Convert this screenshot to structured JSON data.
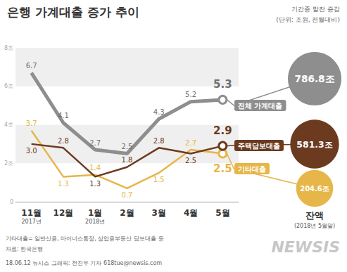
{
  "chart_data": {
    "type": "line",
    "title": "은행 가계대출 증가 추이",
    "subtitle": [
      "기간중 말잔 증감",
      "(단위: 조원, 전월대비)"
    ],
    "categories": [
      "11월\n2017년",
      "12월",
      "1월\n2018년",
      "2월",
      "3월",
      "4월",
      "5월"
    ],
    "series": [
      {
        "name": "전체 가계대출",
        "color": "#8e8e8e",
        "values": [
          6.7,
          4.1,
          2.7,
          2.5,
          4.3,
          5.2,
          5.3
        ],
        "value_labels": [
          "6.7",
          "4.1",
          "2.7",
          "2.5",
          "4.3",
          "5.2",
          "5.3"
        ],
        "balance": 786.8,
        "balance_label": "786.8조"
      },
      {
        "name": "주택담보대출",
        "color": "#6b3a1f",
        "values": [
          3.0,
          2.8,
          1.3,
          1.8,
          2.8,
          2.5,
          2.9
        ],
        "value_labels": [
          "3.0",
          "2.8",
          "1.3",
          "1.8",
          "2.8",
          "2.5",
          "2.9"
        ],
        "balance": 581.3,
        "balance_label": "581.3조"
      },
      {
        "name": "기타대출",
        "color": "#e6b648",
        "values": [
          3.7,
          1.3,
          1.4,
          0.7,
          1.5,
          2.7,
          2.5
        ],
        "value_labels": [
          "3.7",
          "1.3",
          "1.4",
          "0.7",
          "1.5",
          "2.7",
          "2.5"
        ],
        "balance": 204.6,
        "balance_label": "204.6조"
      }
    ],
    "ylim": [
      0,
      8
    ],
    "yticks": [
      0,
      {
        "value": 2,
        "label": "2조"
      },
      {
        "value": 4,
        "label": "4조"
      },
      {
        "value": 6,
        "label": "6조"
      },
      {
        "value": 8,
        "label": "8조"
      }
    ],
    "grid": true,
    "data_labels": true,
    "balance_title": "잔액",
    "balance_note": "(2018년 5월말)",
    "notes": [
      "기타대출= 일반신용, 마이너스통장, 상업용부동산 담보대출 등",
      "자료: 한국은행",
      "18.06.12 뉴시스 그래픽: 전진우 기자 618tue@newsis.com"
    ],
    "watermark": "NEWSIS"
  }
}
